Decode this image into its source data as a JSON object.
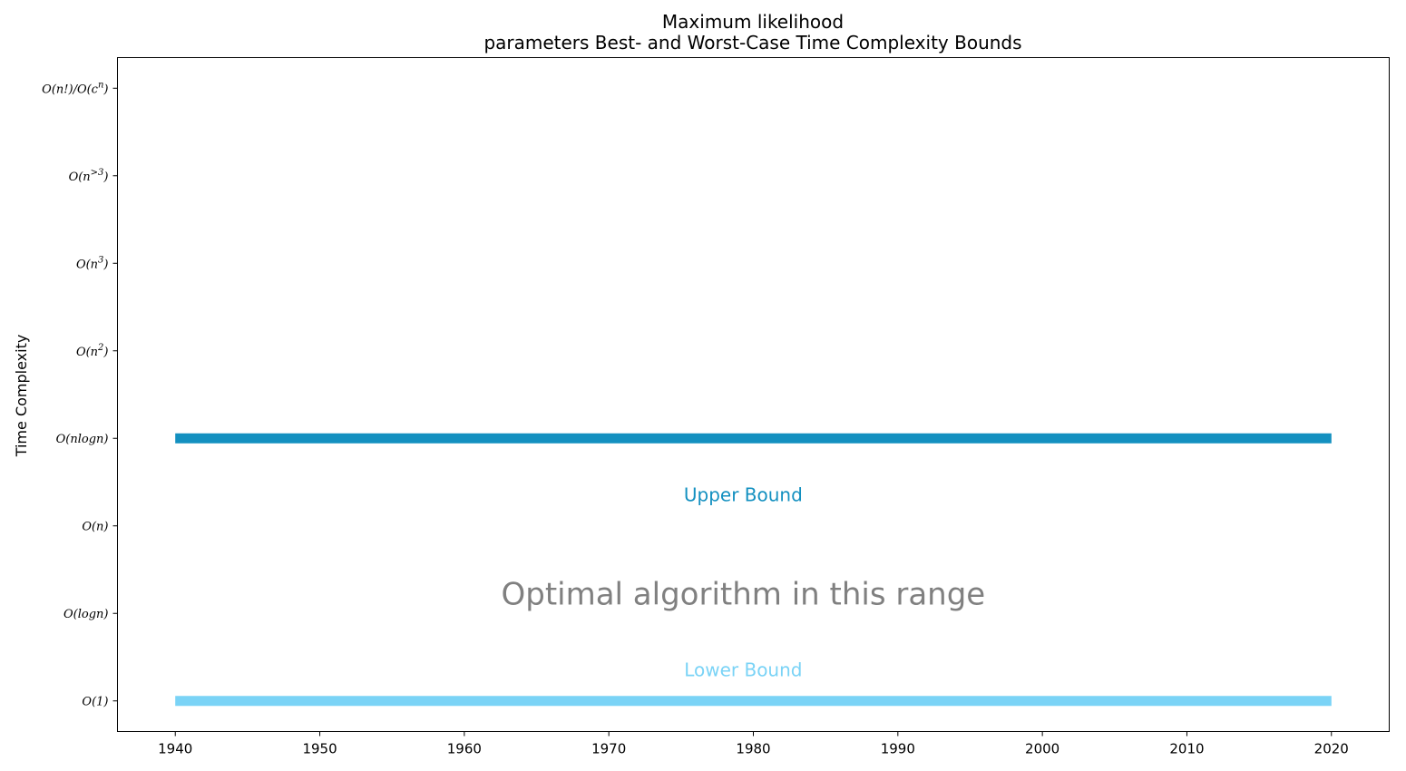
{
  "chart_data": {
    "type": "line",
    "title": [
      "Maximum likelihood",
      "parameters Best- and Worst-Case Time Complexity Bounds"
    ],
    "xlabel": "",
    "ylabel": "Time Complexity",
    "xlim": [
      1936,
      2024
    ],
    "x_ticks": [
      1940,
      1950,
      1960,
      1970,
      1980,
      1990,
      2000,
      2010,
      2020
    ],
    "y_categories": [
      "O(1)",
      "O(logn)",
      "O(n)",
      "O(nlogn)",
      "O(n^2)",
      "O(n^3)",
      "O(n^>3)",
      "O(n!)/O(c^n)"
    ],
    "ylim": [
      -0.35,
      7.35
    ],
    "grid": false,
    "series": [
      {
        "name": "Upper Bound",
        "color": "#1390c0",
        "x": [
          1940,
          2020
        ],
        "y": [
          3,
          3
        ]
      },
      {
        "name": "Lower Bound",
        "color": "#7ad3f6",
        "x": [
          1940,
          2020
        ],
        "y": [
          0,
          0
        ]
      }
    ],
    "annotations": [
      {
        "text": "Upper Bound",
        "x": 1979.3,
        "y": 2.28,
        "color": "#1390c0",
        "role": "upper"
      },
      {
        "text": "Optimal algorithm in this range",
        "x": 1979.3,
        "y": 1.1,
        "color": "#808080",
        "role": "mid"
      },
      {
        "text": "Lower Bound",
        "x": 1979.3,
        "y": 0.28,
        "color": "#7ad3f6",
        "role": "lower"
      }
    ]
  }
}
